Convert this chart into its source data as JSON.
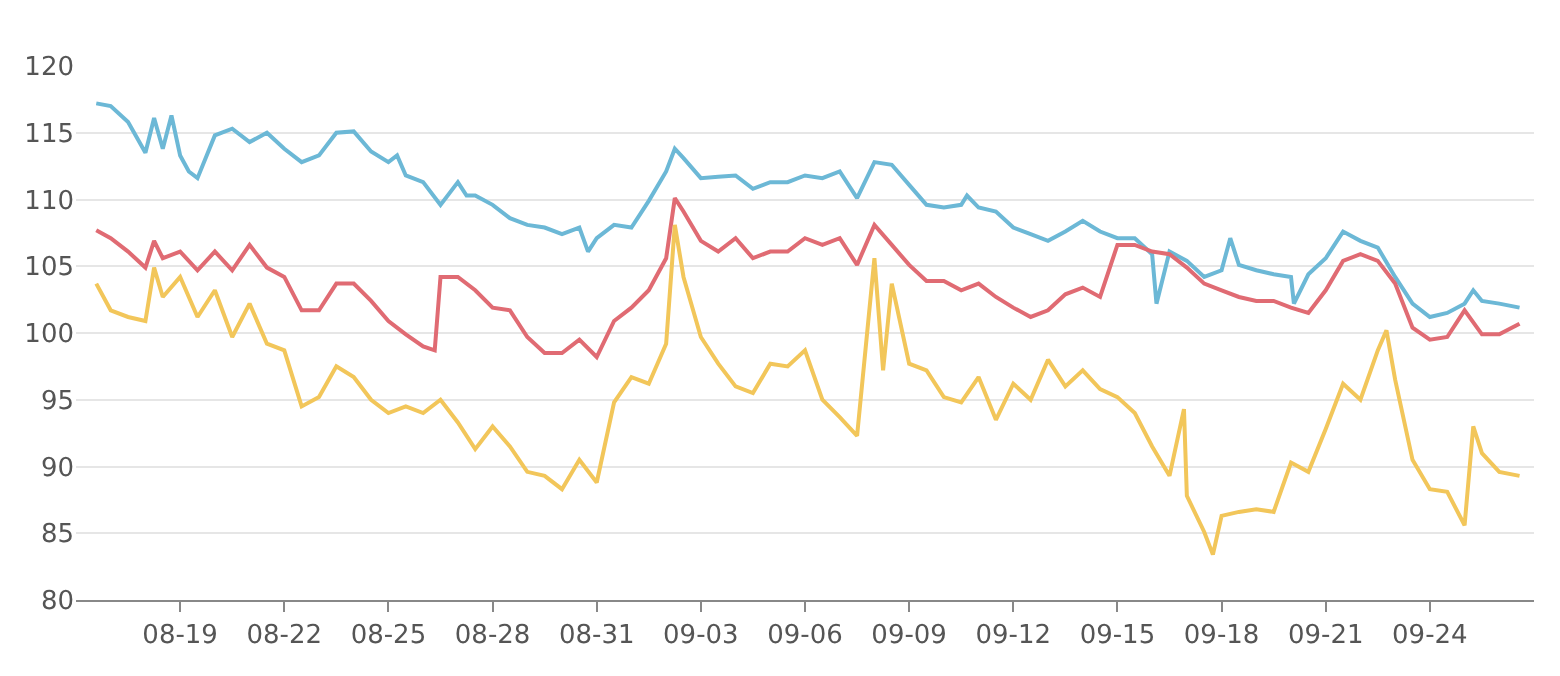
{
  "chart_data": {
    "type": "line",
    "xlim": [
      "--08-16",
      "--09-27"
    ],
    "ylim": [
      80,
      120
    ],
    "yticks": [
      80,
      85,
      90,
      95,
      100,
      105,
      110,
      115,
      120
    ],
    "xticks": [
      {
        "value": "--08-19",
        "label": "08-19"
      },
      {
        "value": "--08-22",
        "label": "08-22"
      },
      {
        "value": "--08-25",
        "label": "08-25"
      },
      {
        "value": "--08-28",
        "label": "08-28"
      },
      {
        "value": "--08-31",
        "label": "08-31"
      },
      {
        "value": "--09-03",
        "label": "09-03"
      },
      {
        "value": "--09-06",
        "label": "09-06"
      },
      {
        "value": "--09-09",
        "label": "09-09"
      },
      {
        "value": "--09-12",
        "label": "09-12"
      },
      {
        "value": "--09-15",
        "label": "09-15"
      },
      {
        "value": "--09-18",
        "label": "09-18"
      },
      {
        "value": "--09-21",
        "label": "09-21"
      },
      {
        "value": "--09-24",
        "label": "09-24"
      }
    ],
    "grid": "y",
    "marker": "none",
    "line_style": "solid",
    "series": [
      {
        "color": "#6cb8d6",
        "x": [
          "--08-16T14:00",
          "--08-17T00:00",
          "--08-17T12:00",
          "--08-18T00:00",
          "--08-18T06:00",
          "--08-18T12:00",
          "--08-18T18:00",
          "--08-19T00:00",
          "--08-19T06:00",
          "--08-19T12:00",
          "--08-20T00:00",
          "--08-20T12:00",
          "--08-21T00:00",
          "--08-21T12:00",
          "--08-22T00:00",
          "--08-22T12:00",
          "--08-23T00:00",
          "--08-23T12:00",
          "--08-24T00:00",
          "--08-24T12:00",
          "--08-25T00:00",
          "--08-25T06:00",
          "--08-25T12:00",
          "--08-26T00:00",
          "--08-26T12:00",
          "--08-27T00:00",
          "--08-27T06:00",
          "--08-27T12:00",
          "--08-28T00:00",
          "--08-28T12:00",
          "--08-29T00:00",
          "--08-29T12:00",
          "--08-30T00:00",
          "--08-30T12:00",
          "--08-30T18:00",
          "--08-31T00:00",
          "--08-31T12:00",
          "--09-01T00:00",
          "--09-01T12:00",
          "--09-02T00:00",
          "--09-02T06:00",
          "--09-02T12:00",
          "--09-03T00:00",
          "--09-03T12:00",
          "--09-04T00:00",
          "--09-04T12:00",
          "--09-05T00:00",
          "--09-05T12:00",
          "--09-06T00:00",
          "--09-06T12:00",
          "--09-07T00:00",
          "--09-07T12:00",
          "--09-08T00:00",
          "--09-08T12:00",
          "--09-09T00:00",
          "--09-09T12:00",
          "--09-10T00:00",
          "--09-10T12:00",
          "--09-10T16:00",
          "--09-11T00:00",
          "--09-11T12:00",
          "--09-12T00:00",
          "--09-12T12:00",
          "--09-13T00:00",
          "--09-13T12:00",
          "--09-14T00:00",
          "--09-14T12:00",
          "--09-15T00:00",
          "--09-15T12:00",
          "--09-16T00:00",
          "--09-16T03:00",
          "--09-16T12:00",
          "--09-17T00:00",
          "--09-17T12:00",
          "--09-18T00:00",
          "--09-18T06:00",
          "--09-18T12:00",
          "--09-19T00:00",
          "--09-19T12:00",
          "--09-20T00:00",
          "--09-20T02:00",
          "--09-20T12:00",
          "--09-21T00:00",
          "--09-21T12:00",
          "--09-22T00:00",
          "--09-22T12:00",
          "--09-23T00:00",
          "--09-23T12:00",
          "--09-24T00:00",
          "--09-24T12:00",
          "--09-25T00:00",
          "--09-25T06:00",
          "--09-25T12:00",
          "--09-26T00:00",
          "--09-26T14:00"
        ],
        "values": [
          117.2,
          117.0,
          115.8,
          113.5,
          116.1,
          113.8,
          116.3,
          113.3,
          112.1,
          111.6,
          114.8,
          115.3,
          114.3,
          115.0,
          113.8,
          112.8,
          113.3,
          115.0,
          115.1,
          113.6,
          112.8,
          113.3,
          111.8,
          111.3,
          109.6,
          111.3,
          110.3,
          110.3,
          109.6,
          108.6,
          108.1,
          107.9,
          107.4,
          107.9,
          106.1,
          107.1,
          108.1,
          107.9,
          109.9,
          112.1,
          113.8,
          113.1,
          111.6,
          111.7,
          111.8,
          110.8,
          111.3,
          111.3,
          111.8,
          111.6,
          112.1,
          110.1,
          112.8,
          112.6,
          111.1,
          109.6,
          109.4,
          109.6,
          110.3,
          109.4,
          109.1,
          107.9,
          107.4,
          106.9,
          107.6,
          108.4,
          107.6,
          107.1,
          107.1,
          105.9,
          102.2,
          106.1,
          105.4,
          104.2,
          104.7,
          107.1,
          105.1,
          104.7,
          104.4,
          104.2,
          102.2,
          104.4,
          105.6,
          107.6,
          106.9,
          106.4,
          104.2,
          102.2,
          101.2,
          101.5,
          102.2,
          103.2,
          102.4,
          102.2,
          101.9
        ]
      },
      {
        "color": "#e06b73",
        "x": [
          "--08-16T14:00",
          "--08-17T00:00",
          "--08-17T12:00",
          "--08-18T00:00",
          "--08-18T06:00",
          "--08-18T12:00",
          "--08-19T00:00",
          "--08-19T12:00",
          "--08-20T00:00",
          "--08-20T12:00",
          "--08-21T00:00",
          "--08-21T12:00",
          "--08-22T00:00",
          "--08-22T12:00",
          "--08-23T00:00",
          "--08-23T12:00",
          "--08-24T00:00",
          "--08-24T12:00",
          "--08-25T00:00",
          "--08-25T12:00",
          "--08-26T00:00",
          "--08-26T08:00",
          "--08-26T12:00",
          "--08-27T00:00",
          "--08-27T12:00",
          "--08-28T00:00",
          "--08-28T12:00",
          "--08-29T00:00",
          "--08-29T12:00",
          "--08-30T00:00",
          "--08-30T12:00",
          "--08-31T00:00",
          "--08-31T12:00",
          "--09-01T00:00",
          "--09-01T12:00",
          "--09-02T00:00",
          "--09-02T06:00",
          "--09-02T12:00",
          "--09-03T00:00",
          "--09-03T12:00",
          "--09-04T00:00",
          "--09-04T12:00",
          "--09-05T00:00",
          "--09-05T12:00",
          "--09-06T00:00",
          "--09-06T12:00",
          "--09-07T00:00",
          "--09-07T12:00",
          "--09-08T00:00",
          "--09-08T12:00",
          "--09-09T00:00",
          "--09-09T12:00",
          "--09-10T00:00",
          "--09-10T12:00",
          "--09-11T00:00",
          "--09-11T12:00",
          "--09-12T00:00",
          "--09-12T12:00",
          "--09-13T00:00",
          "--09-13T12:00",
          "--09-14T00:00",
          "--09-14T12:00",
          "--09-15T00:00",
          "--09-15T12:00",
          "--09-16T00:00",
          "--09-16T12:00",
          "--09-17T00:00",
          "--09-17T12:00",
          "--09-18T00:00",
          "--09-18T12:00",
          "--09-19T00:00",
          "--09-19T12:00",
          "--09-20T00:00",
          "--09-20T12:00",
          "--09-21T00:00",
          "--09-21T12:00",
          "--09-22T00:00",
          "--09-22T12:00",
          "--09-23T00:00",
          "--09-23T12:00",
          "--09-24T00:00",
          "--09-24T12:00",
          "--09-25T00:00",
          "--09-25T12:00",
          "--09-26T00:00",
          "--09-26T14:00"
        ],
        "values": [
          107.7,
          107.1,
          106.1,
          104.9,
          106.9,
          105.6,
          106.1,
          104.7,
          106.1,
          104.7,
          106.6,
          104.9,
          104.2,
          101.7,
          101.7,
          103.7,
          103.7,
          102.4,
          100.9,
          99.9,
          99.0,
          98.7,
          104.2,
          104.2,
          103.2,
          101.9,
          101.7,
          99.7,
          98.5,
          98.5,
          99.5,
          98.2,
          100.9,
          101.9,
          103.2,
          105.6,
          110.1,
          109.1,
          106.9,
          106.1,
          107.1,
          105.6,
          106.1,
          106.1,
          107.1,
          106.6,
          107.1,
          105.1,
          108.1,
          106.6,
          105.1,
          103.9,
          103.9,
          103.2,
          103.7,
          102.7,
          101.9,
          101.2,
          101.7,
          102.9,
          103.4,
          102.7,
          106.6,
          106.6,
          106.1,
          105.9,
          104.9,
          103.7,
          103.2,
          102.7,
          102.4,
          102.4,
          101.9,
          101.5,
          103.2,
          105.4,
          105.9,
          105.4,
          103.7,
          100.4,
          99.5,
          99.7,
          101.7,
          99.9,
          99.9,
          100.7
        ]
      },
      {
        "color": "#f2c65a",
        "x": [
          "--08-16T14:00",
          "--08-17T00:00",
          "--08-17T12:00",
          "--08-18T00:00",
          "--08-18T06:00",
          "--08-18T12:00",
          "--08-19T00:00",
          "--08-19T12:00",
          "--08-20T00:00",
          "--08-20T12:00",
          "--08-21T00:00",
          "--08-21T12:00",
          "--08-22T00:00",
          "--08-22T12:00",
          "--08-23T00:00",
          "--08-23T12:00",
          "--08-24T00:00",
          "--08-24T12:00",
          "--08-25T00:00",
          "--08-25T12:00",
          "--08-26T00:00",
          "--08-26T12:00",
          "--08-27T00:00",
          "--08-27T12:00",
          "--08-28T00:00",
          "--08-28T12:00",
          "--08-29T00:00",
          "--08-29T12:00",
          "--08-30T00:00",
          "--08-30T12:00",
          "--08-31T00:00",
          "--08-31T12:00",
          "--09-01T00:00",
          "--09-01T12:00",
          "--09-02T00:00",
          "--09-02T06:00",
          "--09-02T12:00",
          "--09-03T00:00",
          "--09-03T12:00",
          "--09-04T00:00",
          "--09-04T12:00",
          "--09-05T00:00",
          "--09-05T12:00",
          "--09-06T00:00",
          "--09-06T12:00",
          "--09-07T00:00",
          "--09-07T12:00",
          "--09-08T00:00",
          "--09-08T06:00",
          "--09-08T12:00",
          "--09-09T00:00",
          "--09-09T12:00",
          "--09-10T00:00",
          "--09-10T12:00",
          "--09-11T00:00",
          "--09-11T12:00",
          "--09-12T00:00",
          "--09-12T12:00",
          "--09-13T00:00",
          "--09-13T12:00",
          "--09-14T00:00",
          "--09-14T12:00",
          "--09-15T00:00",
          "--09-15T12:00",
          "--09-16T00:00",
          "--09-16T12:00",
          "--09-16T22:00",
          "--09-17T00:00",
          "--09-17T12:00",
          "--09-17T18:00",
          "--09-18T00:00",
          "--09-18T12:00",
          "--09-19T00:00",
          "--09-19T12:00",
          "--09-20T00:00",
          "--09-20T12:00",
          "--09-21T00:00",
          "--09-21T12:00",
          "--09-22T00:00",
          "--09-22T12:00",
          "--09-22T18:00",
          "--09-23T00:00",
          "--09-23T12:00",
          "--09-24T00:00",
          "--09-24T12:00",
          "--09-25T00:00",
          "--09-25T06:00",
          "--09-25T12:00",
          "--09-26T00:00",
          "--09-26T14:00"
        ],
        "values": [
          103.7,
          101.7,
          101.2,
          100.9,
          104.9,
          102.7,
          104.2,
          101.2,
          103.2,
          99.7,
          102.2,
          99.2,
          98.7,
          94.5,
          95.2,
          97.5,
          96.7,
          95.0,
          94.0,
          94.5,
          94.0,
          95.0,
          93.3,
          91.3,
          93.0,
          91.5,
          89.6,
          89.3,
          88.3,
          90.5,
          88.8,
          94.8,
          96.7,
          96.2,
          99.2,
          108.1,
          104.2,
          99.7,
          97.7,
          96.0,
          95.5,
          97.7,
          97.5,
          98.7,
          95.0,
          93.7,
          92.3,
          105.6,
          97.2,
          103.7,
          97.7,
          97.2,
          95.2,
          94.8,
          96.7,
          93.5,
          96.2,
          95.0,
          98.0,
          96.0,
          97.2,
          95.8,
          95.2,
          94.0,
          91.5,
          89.3,
          94.3,
          87.8,
          85.1,
          83.4,
          86.3,
          86.6,
          86.8,
          86.6,
          90.3,
          89.6,
          92.8,
          96.2,
          95.0,
          98.7,
          100.2,
          96.5,
          90.5,
          88.3,
          88.1,
          85.6,
          93.0,
          91.0,
          89.6,
          89.3
        ]
      }
    ]
  }
}
